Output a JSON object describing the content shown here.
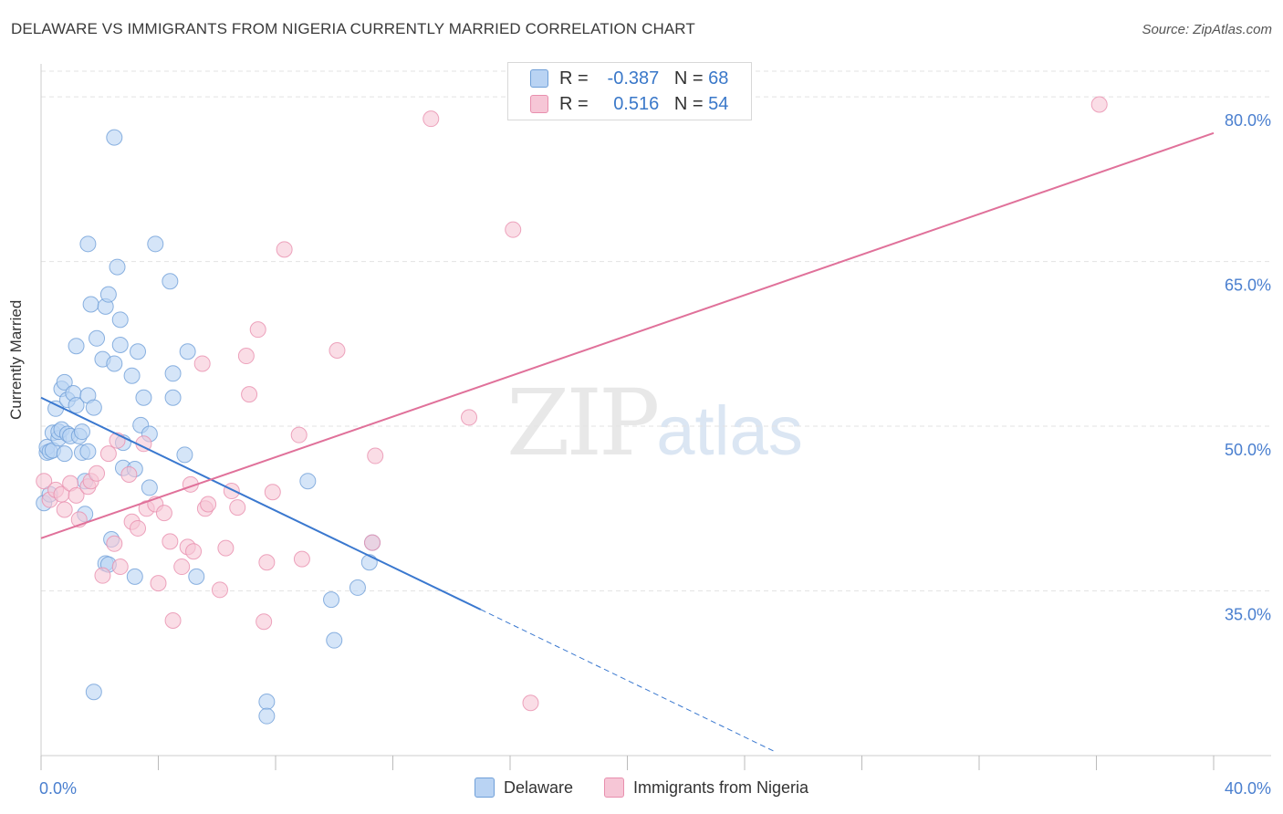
{
  "title": "DELAWARE VS IMMIGRANTS FROM NIGERIA CURRENTLY MARRIED CORRELATION CHART",
  "source": "Source: ZipAtlas.com",
  "watermark": {
    "zip": "ZIP",
    "atlas": "atlas"
  },
  "legend": {
    "r_label": "R =",
    "n_label": "N =",
    "rows": [
      {
        "r": "-0.387",
        "n": "68"
      },
      {
        "r": "0.516",
        "n": "54"
      }
    ]
  },
  "colors": {
    "blue_fill": "#b9d3f3",
    "blue_stroke": "#6f9fd8",
    "blue_line": "#3a78cf",
    "pink_fill": "#f6c6d6",
    "pink_stroke": "#e88fae",
    "pink_line": "#e0719a",
    "tick_text": "#4a7fcf",
    "grid": "#e3e3e3"
  },
  "chart_data": {
    "type": "scatter",
    "title": "DELAWARE VS IMMIGRANTS FROM NIGERIA CURRENTLY MARRIED CORRELATION CHART",
    "xlabel": "",
    "ylabel": "Currently Married",
    "xlim": [
      0,
      40
    ],
    "ylim": [
      20,
      83
    ],
    "x_tick_labels": [
      "0.0%",
      "40.0%"
    ],
    "y_ticks": [
      35,
      50,
      65,
      80
    ],
    "y_tick_labels": [
      "35.0%",
      "50.0%",
      "65.0%",
      "80.0%"
    ],
    "grid": true,
    "series": [
      {
        "name": "Delaware",
        "r": -0.387,
        "n": 68,
        "trend": {
          "x0": 0,
          "y0": 52.6,
          "x1": 15.0,
          "y1": 33.3,
          "dash_to_x": 25.0,
          "dash_to_y": 20.4
        },
        "points": [
          [
            0.1,
            43.0
          ],
          [
            0.2,
            47.6
          ],
          [
            0.2,
            48.1
          ],
          [
            0.3,
            43.8
          ],
          [
            0.3,
            47.7
          ],
          [
            0.4,
            47.8
          ],
          [
            0.4,
            49.4
          ],
          [
            0.5,
            51.6
          ],
          [
            0.6,
            48.9
          ],
          [
            0.6,
            49.5
          ],
          [
            0.7,
            53.4
          ],
          [
            0.7,
            49.7
          ],
          [
            0.8,
            54.0
          ],
          [
            0.8,
            47.5
          ],
          [
            0.9,
            52.4
          ],
          [
            0.9,
            49.3
          ],
          [
            1.0,
            49.1
          ],
          [
            1.1,
            53.0
          ],
          [
            1.2,
            51.9
          ],
          [
            1.2,
            57.3
          ],
          [
            1.3,
            49.1
          ],
          [
            1.4,
            49.5
          ],
          [
            1.4,
            47.6
          ],
          [
            1.5,
            45.0
          ],
          [
            1.5,
            42.0
          ],
          [
            1.6,
            52.8
          ],
          [
            1.6,
            47.7
          ],
          [
            1.6,
            66.6
          ],
          [
            1.7,
            61.1
          ],
          [
            1.8,
            51.7
          ],
          [
            1.8,
            25.8
          ],
          [
            1.9,
            58.0
          ],
          [
            2.1,
            56.1
          ],
          [
            2.2,
            60.9
          ],
          [
            2.2,
            37.5
          ],
          [
            2.3,
            37.4
          ],
          [
            2.3,
            62.0
          ],
          [
            2.4,
            39.7
          ],
          [
            2.5,
            76.3
          ],
          [
            2.5,
            55.7
          ],
          [
            2.6,
            64.5
          ],
          [
            2.7,
            59.7
          ],
          [
            2.7,
            57.4
          ],
          [
            2.8,
            48.5
          ],
          [
            2.8,
            46.2
          ],
          [
            3.1,
            54.6
          ],
          [
            3.2,
            46.1
          ],
          [
            3.2,
            36.3
          ],
          [
            3.3,
            56.8
          ],
          [
            3.4,
            50.1
          ],
          [
            3.5,
            52.6
          ],
          [
            3.7,
            49.3
          ],
          [
            3.7,
            44.4
          ],
          [
            3.9,
            66.6
          ],
          [
            4.4,
            63.2
          ],
          [
            4.5,
            54.8
          ],
          [
            4.5,
            52.6
          ],
          [
            4.9,
            47.4
          ],
          [
            5.0,
            56.8
          ],
          [
            5.3,
            36.3
          ],
          [
            7.7,
            24.9
          ],
          [
            7.7,
            23.6
          ],
          [
            9.1,
            45.0
          ],
          [
            9.9,
            34.2
          ],
          [
            10.0,
            30.5
          ],
          [
            10.8,
            35.3
          ],
          [
            11.2,
            37.6
          ],
          [
            11.3,
            39.4
          ]
        ]
      },
      {
        "name": "Immigrants from Nigeria",
        "r": 0.516,
        "n": 54,
        "trend": {
          "x0": 0,
          "y0": 39.8,
          "x1": 40.0,
          "y1": 76.7
        },
        "points": [
          [
            0.1,
            45.0
          ],
          [
            0.3,
            43.3
          ],
          [
            0.5,
            44.2
          ],
          [
            0.7,
            43.8
          ],
          [
            0.8,
            42.4
          ],
          [
            1.0,
            44.8
          ],
          [
            1.2,
            43.7
          ],
          [
            1.3,
            41.5
          ],
          [
            1.6,
            44.5
          ],
          [
            1.7,
            45.0
          ],
          [
            1.9,
            45.7
          ],
          [
            2.1,
            36.4
          ],
          [
            2.3,
            47.5
          ],
          [
            2.5,
            39.3
          ],
          [
            2.6,
            48.7
          ],
          [
            2.7,
            37.2
          ],
          [
            3.0,
            45.6
          ],
          [
            3.1,
            41.3
          ],
          [
            3.3,
            40.7
          ],
          [
            3.5,
            48.4
          ],
          [
            3.6,
            42.5
          ],
          [
            3.9,
            42.9
          ],
          [
            4.0,
            35.7
          ],
          [
            4.2,
            42.1
          ],
          [
            4.4,
            39.5
          ],
          [
            4.5,
            32.3
          ],
          [
            4.8,
            37.2
          ],
          [
            5.0,
            39.0
          ],
          [
            5.1,
            44.7
          ],
          [
            5.2,
            38.6
          ],
          [
            5.5,
            55.7
          ],
          [
            5.6,
            42.5
          ],
          [
            5.7,
            42.9
          ],
          [
            6.1,
            35.1
          ],
          [
            6.3,
            38.9
          ],
          [
            6.5,
            44.1
          ],
          [
            6.7,
            42.6
          ],
          [
            7.0,
            56.4
          ],
          [
            7.1,
            52.9
          ],
          [
            7.4,
            58.8
          ],
          [
            7.6,
            32.2
          ],
          [
            7.7,
            37.6
          ],
          [
            7.9,
            44.0
          ],
          [
            8.3,
            66.1
          ],
          [
            8.8,
            49.2
          ],
          [
            8.9,
            37.9
          ],
          [
            10.1,
            56.9
          ],
          [
            11.3,
            39.4
          ],
          [
            11.4,
            47.3
          ],
          [
            13.3,
            78.0
          ],
          [
            14.6,
            50.8
          ],
          [
            16.1,
            67.9
          ],
          [
            16.7,
            24.8
          ],
          [
            36.1,
            79.3
          ]
        ]
      }
    ]
  },
  "bottom_legend": [
    "Delaware",
    "Immigrants from Nigeria"
  ]
}
